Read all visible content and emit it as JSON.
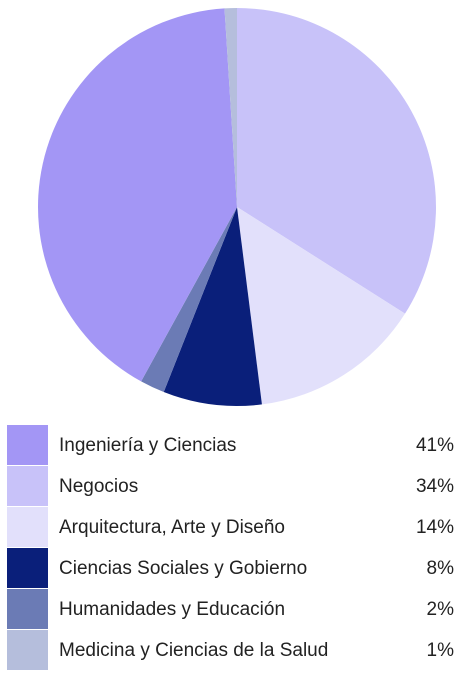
{
  "chart_data": {
    "type": "pie",
    "categories": [
      "Ingeniería y Ciencias",
      "Negocios",
      "Arquitectura, Arte y Diseño",
      "Ciencias Sociales y Gobierno",
      "Humanidades y Educación",
      "Medicina y Ciencias de la Salud"
    ],
    "values": [
      41,
      34,
      14,
      8,
      2,
      1
    ],
    "value_labels": [
      "41%",
      "34%",
      "14%",
      "8%",
      "2%",
      "1%"
    ],
    "colors": [
      "#a396f5",
      "#c8c2f9",
      "#e2e0fb",
      "#0a1f7a",
      "#6b7bb5",
      "#b5bedc"
    ]
  }
}
